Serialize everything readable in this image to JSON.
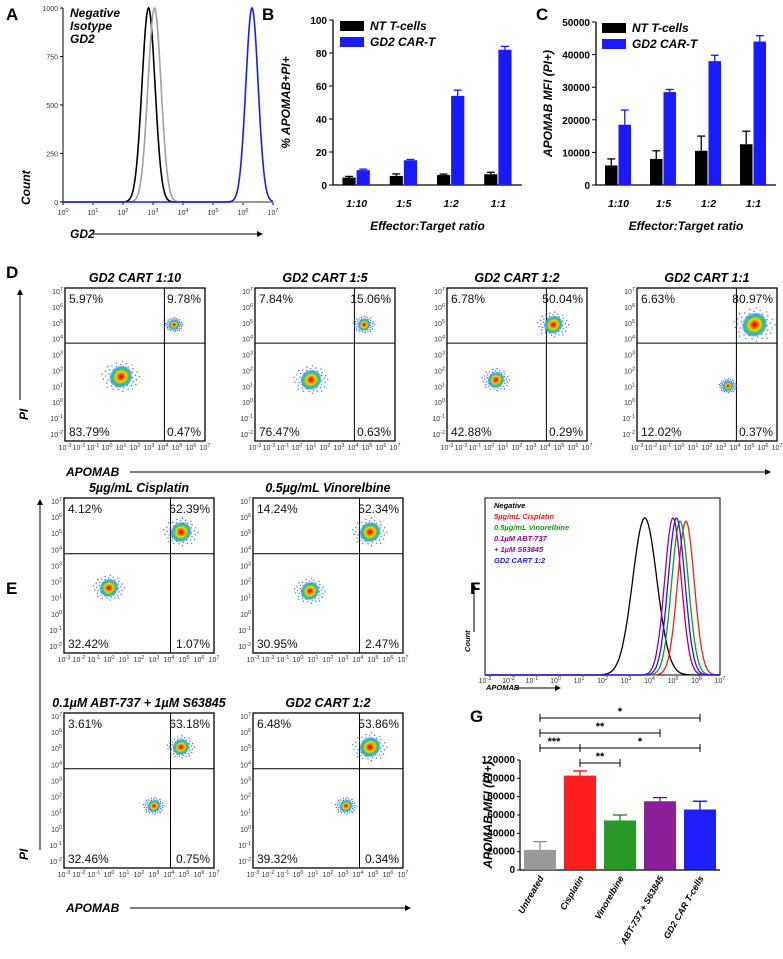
{
  "panel_letters": [
    "A",
    "B",
    "C",
    "D",
    "E",
    "F",
    "G"
  ],
  "chart_data": [
    {
      "id": "A",
      "type": "line",
      "title": "",
      "xlabel": "GD2",
      "ylabel": "Count",
      "x_scale": "log10",
      "xlim_exp": [
        0,
        7
      ],
      "x_ticks": [
        "10^0",
        "10^1",
        "10^2",
        "10^3",
        "10^4",
        "10^5",
        "10^6",
        "10^7"
      ],
      "ylim": [
        0,
        1000
      ],
      "y_ticks": [
        "0",
        "250",
        "500",
        "750",
        "1000"
      ],
      "series": [
        {
          "name": "Negative",
          "color": "#000000",
          "peak_log": 2.85,
          "width": 0.35,
          "height": 1000
        },
        {
          "name": "Isotype",
          "color": "#a0a0a0",
          "peak_log": 3.05,
          "width": 0.35,
          "height": 1000
        },
        {
          "name": "GD2",
          "color": "#1a1aff",
          "peak_log": 6.3,
          "width": 0.33,
          "height": 1000
        }
      ]
    },
    {
      "id": "B",
      "type": "bar",
      "title": "",
      "xlabel": "Effector:Target ratio",
      "ylabel": "% APOMAB+PI+",
      "categories": [
        "1:10",
        "1:5",
        "1:2",
        "1:1"
      ],
      "ylim": [
        0,
        100
      ],
      "y_ticks": [
        "0",
        "20",
        "40",
        "60",
        "80",
        "100"
      ],
      "series": [
        {
          "name": "NT T-cells",
          "color": "#000000",
          "values": [
            4.5,
            5.5,
            6,
            6.5
          ],
          "errors": [
            0.7,
            1.2,
            0.6,
            1.2
          ]
        },
        {
          "name": "GD2 CAR-T",
          "color": "#1a1aff",
          "values": [
            9,
            15,
            54,
            82
          ],
          "errors": [
            0.6,
            0.5,
            3.5,
            2
          ]
        }
      ]
    },
    {
      "id": "C",
      "type": "bar",
      "title": "",
      "xlabel": "Effector:Target ratio",
      "ylabel": "APOMAB MFI (PI+)",
      "categories": [
        "1:10",
        "1:5",
        "1:2",
        "1:1"
      ],
      "ylim": [
        0,
        50000
      ],
      "y_ticks": [
        "0",
        "10000",
        "20000",
        "30000",
        "40000",
        "50000"
      ],
      "series": [
        {
          "name": "NT T-cells",
          "color": "#000000",
          "values": [
            6000,
            8000,
            10500,
            12500
          ],
          "errors": [
            2000,
            2500,
            4500,
            4000
          ]
        },
        {
          "name": "GD2 CAR-T",
          "color": "#1a1aff",
          "values": [
            18500,
            28500,
            38000,
            44000
          ],
          "errors": [
            4500,
            800,
            1800,
            1800
          ]
        }
      ]
    },
    {
      "id": "D",
      "type": "scatter",
      "xlabel": "APOMAB",
      "ylabel": "PI",
      "x_ticks": [
        "10^-3",
        "10^-2",
        "10^-1",
        "10^0",
        "10^1",
        "10^2",
        "10^3",
        "10^4",
        "10^5",
        "10^6",
        "10^7"
      ],
      "y_ticks": [
        "10^7",
        "10^6",
        "10^5",
        "10^4",
        "10^3",
        "10^2",
        "10^1",
        "10^0",
        "10^-1",
        "10^-2"
      ],
      "plots": [
        {
          "title": "GD2 CART 1:10",
          "UL": "5.97%",
          "UR": "9.78%",
          "LL": "83.79%",
          "LR": "0.47%"
        },
        {
          "title": "GD2 CART 1:5",
          "UL": "7.84%",
          "UR": "15.06%",
          "LL": "76.47%",
          "LR": "0.63%"
        },
        {
          "title": "GD2 CART 1:2",
          "UL": "6.78%",
          "UR": "50.04%",
          "LL": "42.88%",
          "LR": "0.29%"
        },
        {
          "title": "GD2 CART 1:1",
          "UL": "6.63%",
          "UR": "80.97%",
          "LL": "12.02%",
          "LR": "0.37%"
        }
      ]
    },
    {
      "id": "E",
      "type": "scatter",
      "xlabel": "APOMAB",
      "ylabel": "PI",
      "x_ticks": [
        "10^-3",
        "10^-2",
        "10^-1",
        "10^0",
        "10^1",
        "10^2",
        "10^3",
        "10^4",
        "10^5",
        "10^6",
        "10^7"
      ],
      "y_ticks": [
        "10^7",
        "10^6",
        "10^5",
        "10^4",
        "10^3",
        "10^2",
        "10^1",
        "10^0",
        "10^-1",
        "10^-2"
      ],
      "plots": [
        {
          "title": "5µg/mL Cisplatin",
          "UL": "4.12%",
          "UR": "62.39%",
          "LL": "32.42%",
          "LR": "1.07%"
        },
        {
          "title": "0.5µg/mL Vinorelbine",
          "UL": "14.24%",
          "UR": "52.34%",
          "LL": "30.95%",
          "LR": "2.47%"
        },
        {
          "title": "0.1µM ABT-737 + 1µM S63845",
          "UL": "3.61%",
          "UR": "63.18%",
          "LL": "32.46%",
          "LR": "0.75%"
        },
        {
          "title": "GD2 CART 1:2",
          "UL": "6.48%",
          "UR": "53.86%",
          "LL": "39.32%",
          "LR": "0.34%"
        }
      ]
    },
    {
      "id": "F",
      "type": "line",
      "xlabel": "APOMAB",
      "ylabel": "Count",
      "x_ticks": [
        "10^-3",
        "10^-2",
        "10^-1",
        "10^0",
        "10^1",
        "10^2",
        "10^3",
        "10^4",
        "10^5",
        "10^6",
        "10^7"
      ],
      "series": [
        {
          "name": "Negative",
          "color": "#000000",
          "peak_log": 3.8,
          "width": 0.8,
          "height": 1
        },
        {
          "name": "5µg/mL Cisplatin",
          "color": "#ff1a1a",
          "peak_log": 5.55,
          "width": 0.55,
          "height": 0.98
        },
        {
          "name": "0.5µg/mL Vinorelbine",
          "color": "#11a011",
          "peak_log": 5.3,
          "width": 0.55,
          "height": 0.98
        },
        {
          "name": "0.1µM ABT-737",
          "color": "#9a009a",
          "peak_log": 5.0,
          "width": 0.55,
          "height": 1
        },
        {
          "name": "+ 1µM S63845",
          "color": "#9a009a"
        },
        {
          "name": "GD2 CART 1:2",
          "color": "#1a1aff",
          "peak_log": 5.15,
          "width": 0.55,
          "height": 1
        }
      ]
    },
    {
      "id": "G",
      "type": "bar",
      "xlabel": "",
      "ylabel": "APOMAB MFI (PI+)",
      "categories": [
        "Untreated",
        "Cisplatin",
        "Vinorelbine",
        "ABT-737 + S63845",
        "GD2 CAR T-cells"
      ],
      "colors": [
        "#8c8c8c",
        "#ff0000",
        "#0a8a0a",
        "#7a008a",
        "#0000ff"
      ],
      "values": [
        22000,
        103000,
        54000,
        75000,
        66000
      ],
      "errors": [
        9000,
        5000,
        6000,
        4000,
        9000
      ],
      "ylim": [
        0,
        120000
      ],
      "y_ticks": [
        "0",
        "20000",
        "40000",
        "60000",
        "80000",
        "100000",
        "120000"
      ],
      "significance": [
        {
          "from": 0,
          "to": 4,
          "label": "*"
        },
        {
          "from": 0,
          "to": 3,
          "label": "**"
        },
        {
          "from": 0,
          "to": 1,
          "label": "***"
        },
        {
          "from": 1,
          "to": 4,
          "label": "*"
        },
        {
          "from": 1,
          "to": 2,
          "label": "**"
        }
      ]
    }
  ]
}
